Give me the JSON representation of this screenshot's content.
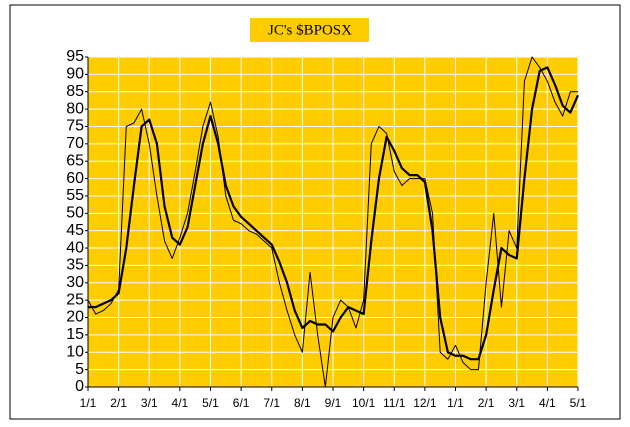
{
  "chart_data": {
    "type": "line",
    "title": "JC's $BPOSX",
    "categories": [
      "1/1",
      null,
      null,
      null,
      "2/1",
      null,
      null,
      null,
      "3/1",
      null,
      null,
      null,
      "4/1",
      null,
      null,
      null,
      "5/1",
      null,
      null,
      null,
      "6/1",
      null,
      null,
      null,
      "7/1",
      null,
      null,
      null,
      "8/1",
      null,
      null,
      null,
      "9/1",
      null,
      null,
      null,
      "10/1",
      null,
      null,
      null,
      "11/1",
      null,
      null,
      null,
      "12/1",
      null,
      null,
      null,
      "1/1",
      null,
      null,
      null,
      "2/1",
      null,
      null,
      null,
      "3/1",
      null,
      null,
      null,
      "4/1",
      null,
      null,
      null,
      "5/1"
    ],
    "series": [
      {
        "color": "#000000",
        "width": 1,
        "values": [
          25,
          21,
          22,
          24,
          28,
          75,
          76,
          80,
          70,
          55,
          42,
          37,
          43,
          50,
          62,
          75,
          82,
          72,
          55,
          48,
          47,
          45,
          44,
          42,
          40,
          30,
          22,
          15,
          10,
          33,
          15,
          0,
          20,
          25,
          23,
          17,
          25,
          70,
          75,
          73,
          62,
          58,
          60,
          60,
          60,
          50,
          10,
          8,
          12,
          7,
          5,
          5,
          30,
          50,
          23,
          45,
          40,
          88,
          95,
          92,
          88,
          82,
          78,
          85,
          85
        ]
      },
      {
        "color": "#000000",
        "width": 2.2,
        "values": [
          23,
          23,
          24,
          25,
          27,
          40,
          58,
          75,
          77,
          70,
          52,
          43,
          41,
          46,
          58,
          70,
          78,
          70,
          58,
          52,
          49,
          47,
          45,
          43,
          41,
          36,
          30,
          22,
          17,
          19,
          18,
          18,
          16,
          20,
          23,
          22,
          21,
          42,
          60,
          72,
          68,
          63,
          61,
          61,
          59,
          45,
          20,
          10,
          9,
          9,
          8,
          8,
          15,
          28,
          40,
          38,
          37,
          60,
          80,
          91,
          92,
          87,
          81,
          79,
          84
        ]
      }
    ],
    "ylim": [
      0,
      95
    ],
    "yticks": [
      0,
      5,
      10,
      15,
      20,
      25,
      30,
      35,
      40,
      45,
      50,
      55,
      60,
      65,
      70,
      75,
      80,
      85,
      90,
      95
    ],
    "grid": true,
    "background": "#ffcc00"
  }
}
